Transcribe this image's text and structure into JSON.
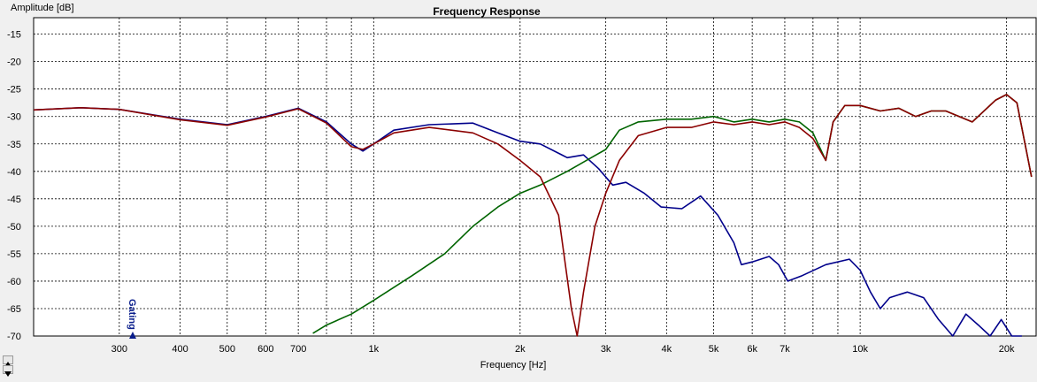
{
  "chart_data": {
    "type": "line",
    "title": "Frequency Response",
    "ylabel": "Amplitude [dB]",
    "xlabel": "Frequency [Hz]",
    "xscale": "log",
    "xlim": [
      200,
      23000
    ],
    "ylim": [
      -70,
      -12
    ],
    "grid": true,
    "x_ticks": [
      {
        "value": 300,
        "label": "300"
      },
      {
        "value": 400,
        "label": "400"
      },
      {
        "value": 500,
        "label": "500"
      },
      {
        "value": 600,
        "label": "600"
      },
      {
        "value": 700,
        "label": "700"
      },
      {
        "value": 1000,
        "label": "1k"
      },
      {
        "value": 2000,
        "label": "2k"
      },
      {
        "value": 3000,
        "label": "3k"
      },
      {
        "value": 4000,
        "label": "4k"
      },
      {
        "value": 5000,
        "label": "5k"
      },
      {
        "value": 6000,
        "label": "6k"
      },
      {
        "value": 7000,
        "label": "7k"
      },
      {
        "value": 10000,
        "label": "10k"
      },
      {
        "value": 20000,
        "label": "20k"
      }
    ],
    "x_minor_ticks": [
      800,
      900,
      8000,
      9000
    ],
    "y_ticks": [
      -15,
      -20,
      -25,
      -30,
      -35,
      -40,
      -45,
      -50,
      -55,
      -60,
      -65,
      -70
    ],
    "series": [
      {
        "color": "#00008b",
        "points": [
          [
            200,
            -28.8
          ],
          [
            250,
            -28.4
          ],
          [
            300,
            -28.7
          ],
          [
            400,
            -30.5
          ],
          [
            500,
            -31.5
          ],
          [
            600,
            -30
          ],
          [
            700,
            -28.5
          ],
          [
            800,
            -31
          ],
          [
            900,
            -35
          ],
          [
            950,
            -36.3
          ],
          [
            1000,
            -35
          ],
          [
            1100,
            -32.5
          ],
          [
            1300,
            -31.5
          ],
          [
            1600,
            -31.2
          ],
          [
            1800,
            -33
          ],
          [
            2000,
            -34.5
          ],
          [
            2200,
            -35
          ],
          [
            2500,
            -37.5
          ],
          [
            2700,
            -37
          ],
          [
            2900,
            -39.5
          ],
          [
            3100,
            -42.5
          ],
          [
            3300,
            -42
          ],
          [
            3600,
            -44
          ],
          [
            3900,
            -46.5
          ],
          [
            4300,
            -46.8
          ],
          [
            4700,
            -44.5
          ],
          [
            5100,
            -48
          ],
          [
            5500,
            -53
          ],
          [
            5700,
            -57
          ],
          [
            6000,
            -56.5
          ],
          [
            6500,
            -55.5
          ],
          [
            6800,
            -57
          ],
          [
            7100,
            -60
          ],
          [
            7600,
            -59
          ],
          [
            8500,
            -57
          ],
          [
            9500,
            -56
          ],
          [
            10000,
            -58
          ],
          [
            10500,
            -62
          ],
          [
            11000,
            -65
          ],
          [
            11500,
            -63
          ],
          [
            12500,
            -62
          ],
          [
            13500,
            -63
          ],
          [
            14500,
            -67
          ],
          [
            15500,
            -70
          ],
          [
            16500,
            -66
          ],
          [
            17500,
            -68
          ],
          [
            18500,
            -70
          ],
          [
            19500,
            -67
          ],
          [
            20500,
            -70
          ],
          [
            21500,
            -70
          ]
        ]
      },
      {
        "color": "#006400",
        "points": [
          [
            750,
            -69.5
          ],
          [
            800,
            -68
          ],
          [
            900,
            -66
          ],
          [
            1000,
            -63.5
          ],
          [
            1200,
            -59
          ],
          [
            1400,
            -55
          ],
          [
            1600,
            -50
          ],
          [
            1800,
            -46.5
          ],
          [
            2000,
            -44
          ],
          [
            2200,
            -42.5
          ],
          [
            2500,
            -40
          ],
          [
            2800,
            -37.5
          ],
          [
            3000,
            -36
          ],
          [
            3200,
            -32.5
          ],
          [
            3500,
            -31
          ],
          [
            4000,
            -30.5
          ],
          [
            4500,
            -30.5
          ],
          [
            5000,
            -30
          ],
          [
            5500,
            -31
          ],
          [
            6000,
            -30.5
          ],
          [
            6500,
            -31
          ],
          [
            7000,
            -30.5
          ],
          [
            7500,
            -31
          ],
          [
            8000,
            -33
          ],
          [
            8500,
            -38
          ],
          [
            8800,
            -31
          ],
          [
            9300,
            -28
          ],
          [
            10000,
            -28
          ],
          [
            11000,
            -29
          ],
          [
            12000,
            -28.5
          ],
          [
            13000,
            -30
          ],
          [
            14000,
            -29
          ],
          [
            15000,
            -29
          ],
          [
            17000,
            -31
          ],
          [
            19000,
            -27
          ],
          [
            20000,
            -26
          ],
          [
            21000,
            -27.5
          ],
          [
            22500,
            -41
          ]
        ]
      },
      {
        "color": "#8b0000",
        "points": [
          [
            200,
            -28.8
          ],
          [
            250,
            -28.4
          ],
          [
            300,
            -28.7
          ],
          [
            400,
            -30.6
          ],
          [
            500,
            -31.6
          ],
          [
            600,
            -30.1
          ],
          [
            700,
            -28.6
          ],
          [
            800,
            -31.2
          ],
          [
            900,
            -35.5
          ],
          [
            950,
            -36
          ],
          [
            1000,
            -35
          ],
          [
            1100,
            -33
          ],
          [
            1300,
            -32
          ],
          [
            1600,
            -33
          ],
          [
            1800,
            -35
          ],
          [
            2000,
            -38
          ],
          [
            2200,
            -41
          ],
          [
            2400,
            -48
          ],
          [
            2550,
            -65
          ],
          [
            2620,
            -70
          ],
          [
            2700,
            -62
          ],
          [
            2850,
            -50
          ],
          [
            3000,
            -44
          ],
          [
            3200,
            -38
          ],
          [
            3500,
            -33.5
          ],
          [
            4000,
            -32
          ],
          [
            4500,
            -32
          ],
          [
            5000,
            -31
          ],
          [
            5500,
            -31.5
          ],
          [
            6000,
            -31
          ],
          [
            6500,
            -31.5
          ],
          [
            7000,
            -31
          ],
          [
            7500,
            -32
          ],
          [
            8000,
            -34
          ],
          [
            8500,
            -38
          ],
          [
            8800,
            -31
          ],
          [
            9300,
            -28
          ],
          [
            10000,
            -28
          ],
          [
            11000,
            -29
          ],
          [
            12000,
            -28.5
          ],
          [
            13000,
            -30
          ],
          [
            14000,
            -29
          ],
          [
            15000,
            -29
          ],
          [
            17000,
            -31
          ],
          [
            19000,
            -27
          ],
          [
            20000,
            -26
          ],
          [
            21000,
            -27.5
          ],
          [
            22500,
            -41
          ]
        ]
      }
    ],
    "annotation": "Gating"
  }
}
